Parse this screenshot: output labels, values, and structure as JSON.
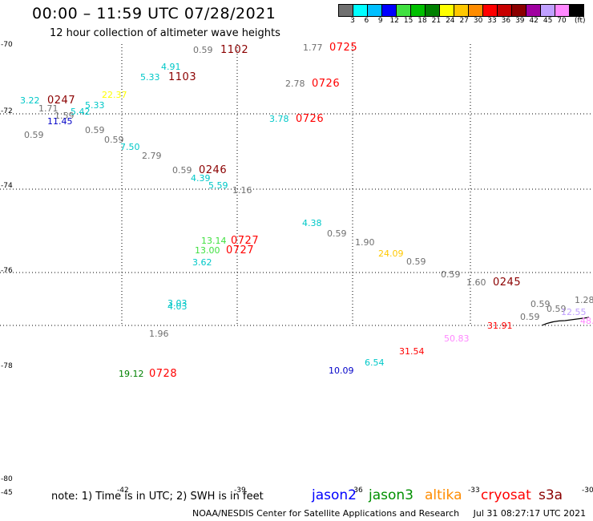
{
  "title": "00:00 – 11:59 UTC 07/28/2021",
  "subtitle": "12 hour collection of altimeter wave heights",
  "colorbar": {
    "colors": [
      "#707070",
      "#00ffff",
      "#00bfff",
      "#0000ff",
      "#40e040",
      "#00c000",
      "#008000",
      "#ffff00",
      "#ffc800",
      "#ff8c00",
      "#ff0000",
      "#c80000",
      "#8b0000",
      "#a000a0",
      "#c0a0ff",
      "#ff88ff",
      "#000000"
    ],
    "labels": [
      "3",
      "6",
      "9",
      "12",
      "15",
      "18",
      "21",
      "24",
      "27",
      "30",
      "33",
      "36",
      "39",
      "42",
      "45",
      "70"
    ],
    "unit": "(ft)"
  },
  "y_axis_labels": [
    "-70",
    "-72",
    "-74",
    "-76",
    "-78",
    "-80"
  ],
  "x_axis_labels": [
    "-45",
    "-42",
    "-39",
    "-36",
    "-33",
    "-30"
  ],
  "wave_heights": [
    {
      "text": "0.59",
      "color": "#707070"
    },
    {
      "text": "1102",
      "color": "#8b0000"
    },
    {
      "text": "1.77",
      "color": "#707070"
    },
    {
      "text": "0725",
      "color": "#ff0000"
    },
    {
      "text": "4.91",
      "color": "#00c8c8"
    },
    {
      "text": "5.33",
      "color": "#00c8c8"
    },
    {
      "text": "1103",
      "color": "#8b0000"
    },
    {
      "text": "2.78",
      "color": "#707070"
    },
    {
      "text": "0726",
      "color": "#ff0000"
    },
    {
      "text": "22.37",
      "color": "#ffff00"
    },
    {
      "text": "3.22",
      "color": "#00c8c8"
    },
    {
      "text": "0247",
      "color": "#8b0000"
    },
    {
      "text": "5.33",
      "color": "#00c8c8"
    },
    {
      "text": "1.71",
      "color": "#707070"
    },
    {
      "text": "1.59",
      "color": "#707070"
    },
    {
      "text": "5.42",
      "color": "#00c8c8"
    },
    {
      "text": "3.78",
      "color": "#00c8c8"
    },
    {
      "text": "0726",
      "color": "#ff0000"
    },
    {
      "text": "11.45",
      "color": "#0000c8"
    },
    {
      "text": "0.59",
      "color": "#707070"
    },
    {
      "text": "0.59",
      "color": "#707070"
    },
    {
      "text": "0.59",
      "color": "#707070"
    },
    {
      "text": "7.50",
      "color": "#00c8c8"
    },
    {
      "text": "2.79",
      "color": "#707070"
    },
    {
      "text": "0.59",
      "color": "#707070"
    },
    {
      "text": "0246",
      "color": "#8b0000"
    },
    {
      "text": "4.39",
      "color": "#00c8c8"
    },
    {
      "text": "5.59",
      "color": "#00c8c8"
    },
    {
      "text": "1.16",
      "color": "#707070"
    },
    {
      "text": "4.38",
      "color": "#00c8c8"
    },
    {
      "text": "0.59",
      "color": "#707070"
    },
    {
      "text": "1.90",
      "color": "#707070"
    },
    {
      "text": "13.14",
      "color": "#40e040"
    },
    {
      "text": "0727",
      "color": "#ff0000"
    },
    {
      "text": "13.00",
      "color": "#40e040"
    },
    {
      "text": "0727",
      "color": "#ff0000"
    },
    {
      "text": "24.09",
      "color": "#ffc800"
    },
    {
      "text": "0.59",
      "color": "#707070"
    },
    {
      "text": "3.62",
      "color": "#00c8c8"
    },
    {
      "text": "0.59",
      "color": "#707070"
    },
    {
      "text": "1.60",
      "color": "#707070"
    },
    {
      "text": "0245",
      "color": "#8b0000"
    },
    {
      "text": "3.03",
      "color": "#00c8c8"
    },
    {
      "text": "4.03",
      "color": "#00c8c8"
    },
    {
      "text": "0.59",
      "color": "#707070"
    },
    {
      "text": "0.59",
      "color": "#707070"
    },
    {
      "text": "1.28",
      "color": "#707070"
    },
    {
      "text": "12.55",
      "color": "#c0a0ff"
    },
    {
      "text": "0.59",
      "color": "#707070"
    },
    {
      "text": "31.91",
      "color": "#ff0000"
    },
    {
      "text": "48.",
      "color": "#ff88ff"
    },
    {
      "text": "1.96",
      "color": "#707070"
    },
    {
      "text": "50.83",
      "color": "#ff88ff"
    },
    {
      "text": "31.54",
      "color": "#ff0000"
    },
    {
      "text": "6.54",
      "color": "#00c8c8"
    },
    {
      "text": "10.09",
      "color": "#0000c8"
    },
    {
      "text": "19.12",
      "color": "#008000"
    },
    {
      "text": "0728",
      "color": "#ff0000"
    }
  ],
  "note": "note: 1) Time is in UTC; 2) SWH is in feet",
  "legend": [
    {
      "name": "jason2",
      "color": "#0000ff"
    },
    {
      "name": "jason3",
      "color": "#009000"
    },
    {
      "name": "altika",
      "color": "#ff8c00"
    },
    {
      "name": "cryosat",
      "color": "#ff0000"
    },
    {
      "name": "s3a",
      "color": "#8b0000"
    }
  ],
  "credit": "NOAA/NESDIS Center for Satellite Applications and Research",
  "timestamp": "Jul 31 08:27:17 UTC 2021"
}
